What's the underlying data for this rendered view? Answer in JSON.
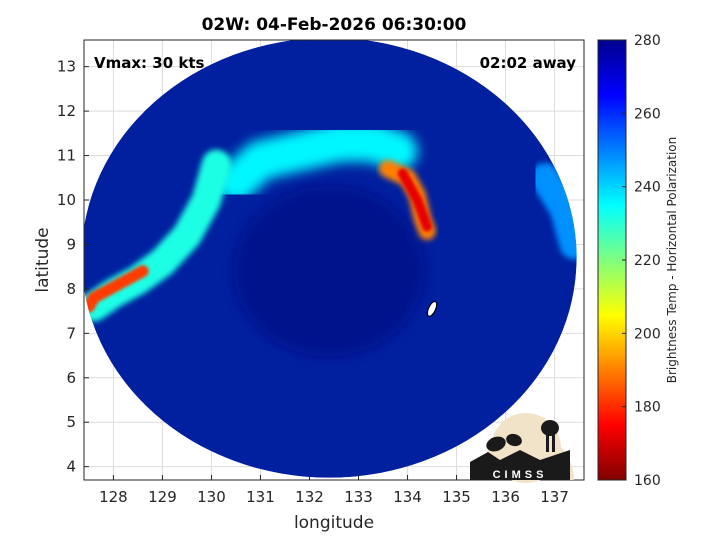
{
  "chart_data": {
    "type": "heatmap",
    "title": "02W: 04-Feb-2026 06:30:00",
    "xlabel": "longitude",
    "ylabel": "latitude",
    "xlim": [
      127.4,
      137.6
    ],
    "ylim": [
      3.7,
      13.6
    ],
    "xticks": [
      128,
      129,
      130,
      131,
      132,
      133,
      134,
      135,
      136,
      137
    ],
    "yticks": [
      4,
      5,
      6,
      7,
      8,
      9,
      10,
      11,
      12,
      13
    ],
    "grid": true,
    "annotations": {
      "left": "Vmax: 30 kts",
      "right": "02:02 away"
    },
    "swath": {
      "center": [
        132.4,
        8.7
      ],
      "radius_lon": 5.05,
      "radius_lat": 4.95
    },
    "storm_center_marker": {
      "lon": 134.5,
      "lat": 7.55
    },
    "colorbar": {
      "label": "Brightness Temp - Horizontal Polarization",
      "range": [
        160,
        280
      ],
      "ticks": [
        160,
        180,
        200,
        220,
        240,
        260,
        280
      ],
      "colormap": "jet"
    },
    "features": [
      {
        "name": "northern rainband",
        "points": [
          [
            130.5,
            10.4
          ],
          [
            131.0,
            10.9
          ],
          [
            131.8,
            11.1
          ],
          [
            132.6,
            11.3
          ],
          [
            133.3,
            11.3
          ],
          [
            133.8,
            11.1
          ]
        ],
        "temp": 236,
        "radius": 0.4
      },
      {
        "name": "eastern convection",
        "points": [
          [
            133.6,
            10.7
          ],
          [
            134.0,
            10.5
          ],
          [
            134.2,
            10.1
          ],
          [
            134.3,
            9.6
          ],
          [
            134.4,
            9.3
          ]
        ],
        "temp": 190,
        "radius": 0.18
      },
      {
        "name": "eastern core",
        "points": [
          [
            133.9,
            10.6
          ],
          [
            134.2,
            10.0
          ],
          [
            134.4,
            9.4
          ]
        ],
        "temp": 172,
        "radius": 0.1
      },
      {
        "name": "western band",
        "points": [
          [
            127.6,
            7.6
          ],
          [
            128.0,
            7.9
          ],
          [
            128.5,
            8.2
          ],
          [
            129.0,
            8.6
          ],
          [
            129.5,
            9.2
          ],
          [
            129.9,
            10.0
          ],
          [
            130.1,
            10.8
          ]
        ],
        "temp": 232,
        "radius": 0.3
      },
      {
        "name": "western convection",
        "points": [
          [
            127.5,
            7.6
          ],
          [
            127.6,
            7.8
          ],
          [
            128.6,
            8.4
          ]
        ],
        "temp": 182,
        "radius": 0.12
      },
      {
        "name": "eastern edge",
        "points": [
          [
            136.8,
            10.5
          ],
          [
            137.2,
            9.8
          ],
          [
            137.4,
            9.0
          ]
        ],
        "temp": 248,
        "radius": 0.3
      }
    ],
    "logo": {
      "text": "CIMSS"
    }
  },
  "colors": {
    "background": "#00209f",
    "eye": "#000f85",
    "axis": "#262626",
    "grid": "#dcdcdc"
  }
}
